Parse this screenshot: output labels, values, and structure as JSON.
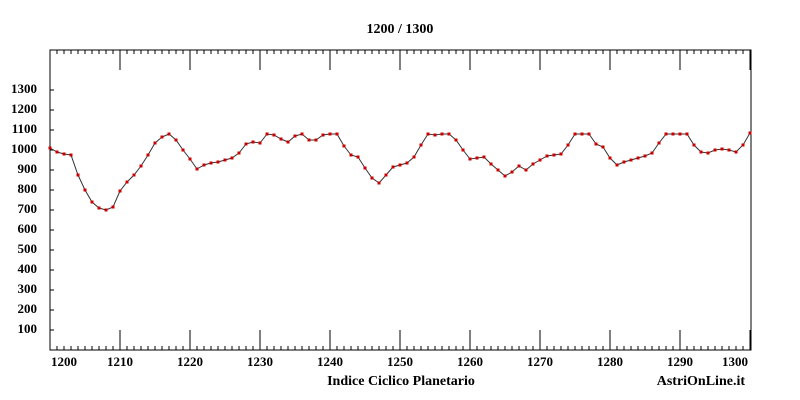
{
  "chart_data": {
    "type": "line",
    "title": "1200  /  1300",
    "x_label": "Indice Ciclico Planetario",
    "watermark": "AstriOnLine.it",
    "x": [
      1200,
      1201,
      1202,
      1203,
      1204,
      1205,
      1206,
      1207,
      1208,
      1209,
      1210,
      1211,
      1212,
      1213,
      1214,
      1215,
      1216,
      1217,
      1218,
      1219,
      1220,
      1221,
      1222,
      1223,
      1224,
      1225,
      1226,
      1227,
      1228,
      1229,
      1230,
      1231,
      1232,
      1233,
      1234,
      1235,
      1236,
      1237,
      1238,
      1239,
      1240,
      1241,
      1242,
      1243,
      1244,
      1245,
      1246,
      1247,
      1248,
      1249,
      1250,
      1251,
      1252,
      1253,
      1254,
      1255,
      1256,
      1257,
      1258,
      1259,
      1260,
      1261,
      1262,
      1263,
      1264,
      1265,
      1266,
      1267,
      1268,
      1269,
      1270,
      1271,
      1272,
      1273,
      1274,
      1275,
      1276,
      1277,
      1278,
      1279,
      1280,
      1281,
      1282,
      1283,
      1284,
      1285,
      1286,
      1287,
      1288,
      1289,
      1290,
      1291,
      1292,
      1293,
      1294,
      1295,
      1296,
      1297,
      1298,
      1299,
      1300
    ],
    "values": [
      1010,
      990,
      980,
      975,
      875,
      800,
      740,
      710,
      700,
      715,
      795,
      840,
      875,
      920,
      975,
      1035,
      1065,
      1080,
      1050,
      1000,
      955,
      905,
      925,
      935,
      940,
      950,
      960,
      985,
      1030,
      1040,
      1035,
      1080,
      1075,
      1055,
      1040,
      1070,
      1080,
      1050,
      1050,
      1075,
      1080,
      1080,
      1020,
      975,
      965,
      910,
      860,
      835,
      875,
      915,
      925,
      935,
      965,
      1025,
      1080,
      1075,
      1080,
      1080,
      1050,
      1000,
      955,
      960,
      965,
      930,
      900,
      870,
      890,
      920,
      900,
      930,
      950,
      970,
      975,
      980,
      1025,
      1080,
      1080,
      1080,
      1030,
      1015,
      960,
      925,
      940,
      950,
      960,
      970,
      985,
      1035,
      1080,
      1080,
      1080,
      1080,
      1025,
      990,
      985,
      1000,
      1005,
      1000,
      990,
      1025,
      1085
    ],
    "line_color": "#333333",
    "marker_color": "#cc0000",
    "xlim": [
      1200,
      1300
    ],
    "xticks": [
      1200,
      1210,
      1220,
      1230,
      1240,
      1250,
      1260,
      1270,
      1280,
      1290,
      1300
    ],
    "ylim": [
      0,
      1500
    ],
    "yticks": [
      100,
      200,
      300,
      400,
      500,
      600,
      700,
      800,
      900,
      1000,
      1100,
      1200,
      1300
    ]
  }
}
